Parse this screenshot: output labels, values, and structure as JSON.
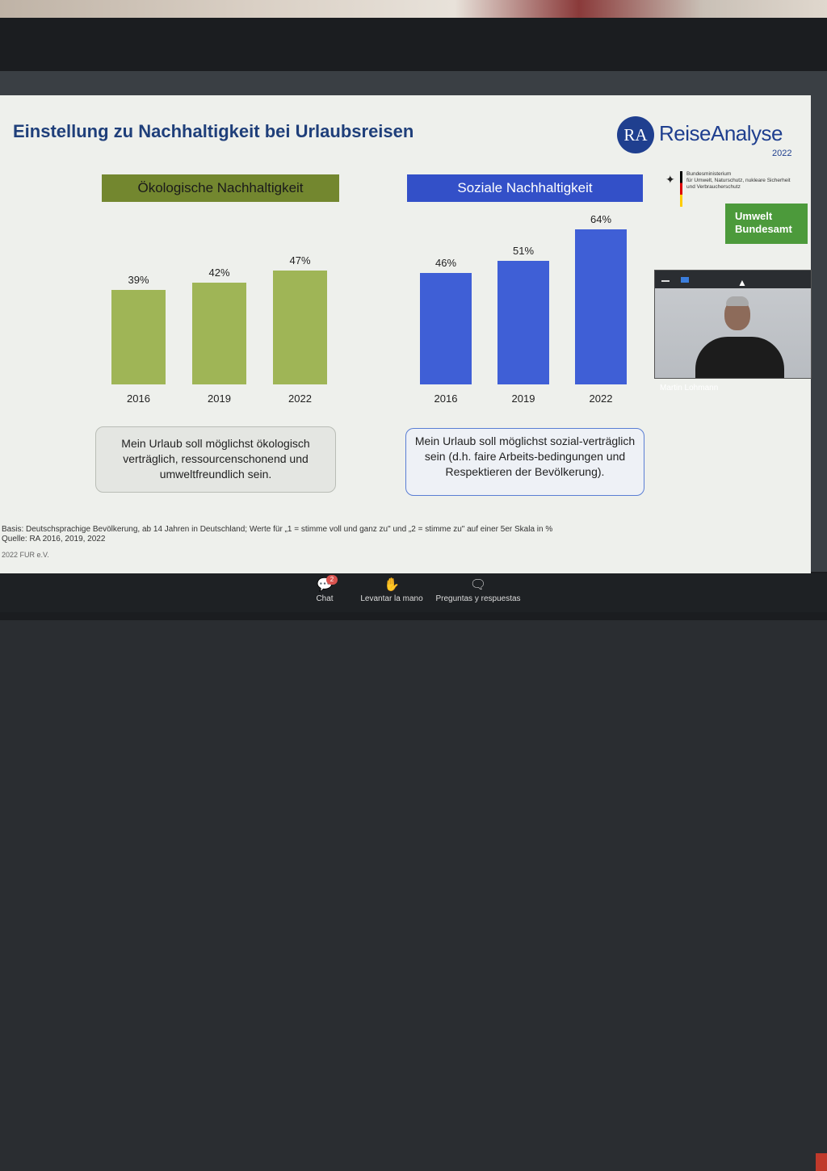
{
  "slide": {
    "title": "Einstellung zu Nachhaltigkeit bei Urlaubsreisen",
    "logo": {
      "mark": "RA",
      "name": "ReiseAnalyse",
      "year": "2022"
    },
    "ministry": {
      "lines": [
        "Bundesministerium",
        "für Umwelt, Naturschutz, nukleare Sicherheit",
        "und Verbraucherschutz"
      ]
    },
    "uba": {
      "line1": "Umwelt",
      "line2": "Bundesamt"
    },
    "sections": {
      "oeko": {
        "header": "Ökologische Nachhaltigkeit",
        "callout": "Mein Urlaub soll möglichst ökologisch verträglich, ressourcenschonend und umweltfreundlich sein."
      },
      "soz": {
        "header": "Soziale Nachhaltigkeit",
        "callout": "Mein Urlaub soll möglichst sozial-verträglich sein (d.h. faire Arbeits-bedingungen und Respektieren der Bevölkerung)."
      }
    },
    "footnote": {
      "basis": "Basis: Deutschsprachige Bevölkerung, ab 14 Jahren in Deutschland; Werte für „1 = stimme voll und ganz zu\" und „2 = stimme zu\" auf einer 5er Skala in %",
      "source": "Quelle: RA 2016, 2019, 2022",
      "copyright": "2022 FUR e.V."
    }
  },
  "colors": {
    "oeko": "#9fb556",
    "soz": "#3f5fd6",
    "title": "#1f3f7a"
  },
  "chart_data": [
    {
      "type": "bar",
      "title": "Ökologische Nachhaltigkeit",
      "categories": [
        "2016",
        "2019",
        "2022"
      ],
      "values": [
        39,
        42,
        47
      ],
      "labels": [
        "39%",
        "42%",
        "47%"
      ]
    },
    {
      "type": "bar",
      "title": "Soziale Nachhaltigkeit",
      "categories": [
        "2016",
        "2019",
        "2022"
      ],
      "values": [
        46,
        51,
        64
      ],
      "labels": [
        "46%",
        "51%",
        "64%"
      ]
    }
  ],
  "video": {
    "participant": "Martin Lohmann"
  },
  "toolbar": {
    "chat": {
      "label": "Chat",
      "badge": "2"
    },
    "hand": {
      "label": "Levantar la mano"
    },
    "qa": {
      "label": "Preguntas y respuestas"
    }
  }
}
